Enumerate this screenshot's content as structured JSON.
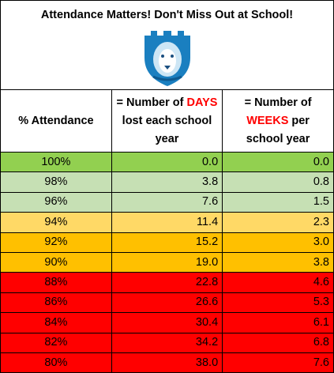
{
  "title": "Attendance Matters!  Don't Miss Out at School!",
  "table": {
    "header": [
      {
        "text": "% Attendance"
      },
      {
        "before": "= Number of",
        "highlight": "DAYS",
        "after": "lost each school year"
      },
      {
        "before": "= Number of",
        "highlight": "WEEKS",
        "after": "per school year"
      }
    ],
    "highlight_color": "#ff0000",
    "rows": [
      {
        "cells": [
          "100%",
          "0.0",
          "0.0"
        ],
        "color": "#92d050"
      },
      {
        "cells": [
          "98%",
          "3.8",
          "0.8"
        ],
        "color": "#c6e0b4"
      },
      {
        "cells": [
          "96%",
          "7.6",
          "1.5"
        ],
        "color": "#c6e0b4"
      },
      {
        "cells": [
          "94%",
          "11.4",
          "2.3"
        ],
        "color": "#ffd966"
      },
      {
        "cells": [
          "92%",
          "15.2",
          "3.0"
        ],
        "color": "#ffc000"
      },
      {
        "cells": [
          "90%",
          "19.0",
          "3.8"
        ],
        "color": "#ffc000"
      },
      {
        "cells": [
          "88%",
          "22.8",
          "4.6"
        ],
        "color": "#ff0000"
      },
      {
        "cells": [
          "86%",
          "26.6",
          "5.3"
        ],
        "color": "#ff0000"
      },
      {
        "cells": [
          "84%",
          "30.4",
          "6.1"
        ],
        "color": "#ff0000"
      },
      {
        "cells": [
          "82%",
          "34.2",
          "6.8"
        ],
        "color": "#ff0000"
      },
      {
        "cells": [
          "80%",
          "38.0",
          "7.6"
        ],
        "color": "#ff0000"
      }
    ]
  }
}
